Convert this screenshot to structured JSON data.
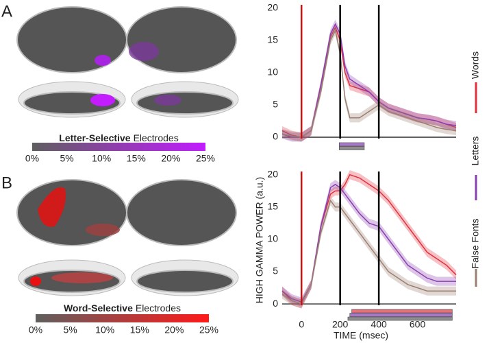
{
  "panels": [
    {
      "label": "A",
      "colorbar": {
        "title_bold": "Letter-Selective",
        "title_rest": "Electrodes",
        "colors": [
          "#5f5f5f",
          "#c21cff"
        ],
        "ticks": [
          {
            "value": 0,
            "label": "0%"
          },
          {
            "value": 5,
            "label": "5%"
          },
          {
            "value": 10,
            "label": "10%"
          },
          {
            "value": 15,
            "label": "15%"
          },
          {
            "value": 20,
            "label": "20%"
          },
          {
            "value": 25,
            "label": "25%"
          }
        ]
      }
    },
    {
      "label": "B",
      "colorbar": {
        "title_bold": "Word-Selective",
        "title_rest": "Electrodes",
        "colors": [
          "#5f5f5f",
          "#ff1a1a"
        ],
        "ticks": [
          {
            "value": 0,
            "label": "0%"
          },
          {
            "value": 5,
            "label": "5%"
          },
          {
            "value": 10,
            "label": "10%"
          },
          {
            "value": 15,
            "label": "15%"
          },
          {
            "value": 20,
            "label": "20%"
          },
          {
            "value": 25,
            "label": "25%"
          }
        ]
      }
    }
  ],
  "ylabel": "HIGH GAMMA POWER (a.u.)",
  "xlabel": "TIME (msec)",
  "chart_data": [
    {
      "type": "line",
      "x": [
        -100,
        -50,
        0,
        50,
        100,
        150,
        175,
        200,
        225,
        250,
        300,
        350,
        400,
        450,
        500,
        550,
        600,
        650,
        700,
        750,
        800
      ],
      "xlim": [
        -100,
        800
      ],
      "ylim": [
        -2.5,
        20.5
      ],
      "yticks": [
        0,
        5,
        10,
        15,
        20
      ],
      "error": 0.7,
      "series": [
        {
          "name": "Words",
          "color": "#e0303c",
          "values": [
            1,
            0.3,
            0,
            1,
            8,
            15.5,
            17,
            15,
            10,
            8,
            7.5,
            7,
            5.5,
            4.5,
            4,
            3.5,
            3,
            2.8,
            2.5,
            2,
            1.5
          ]
        },
        {
          "name": "Letters",
          "color": "#8a3fb0",
          "values": [
            0.5,
            0,
            0,
            1,
            8,
            16,
            17.5,
            16,
            11,
            9,
            8,
            7,
            5.5,
            4.5,
            4,
            3.5,
            3,
            2.8,
            2.5,
            2,
            1.8
          ]
        },
        {
          "name": "False Fonts",
          "color": "#9a7f72",
          "values": [
            0.5,
            0.2,
            0,
            1,
            7,
            15,
            16.5,
            13,
            6,
            3,
            3,
            4,
            5,
            4,
            3.5,
            3,
            2.5,
            2,
            1.5,
            1.2,
            1
          ]
        }
      ],
      "vlines": [
        {
          "x": 0,
          "color": "#cc1111"
        },
        {
          "x": 200,
          "color": "#000000"
        },
        {
          "x": 400,
          "color": "#000000"
        }
      ],
      "sig_bars": [
        {
          "start": 195,
          "end": 325,
          "color": "#a878c8"
        },
        {
          "start": 195,
          "end": 325,
          "color": "#8e8e8e"
        }
      ]
    },
    {
      "type": "line",
      "x": [
        -100,
        -50,
        0,
        50,
        100,
        150,
        175,
        200,
        225,
        250,
        300,
        350,
        400,
        450,
        500,
        550,
        600,
        650,
        700,
        750,
        800
      ],
      "xlim": [
        -100,
        800
      ],
      "ylim": [
        -1.8,
        20.5
      ],
      "yticks": [
        0,
        5,
        10,
        15,
        20
      ],
      "xticks": [
        0,
        200,
        400,
        600
      ],
      "error": 0.7,
      "series": [
        {
          "color": "#e0303c",
          "values": [
            2,
            0.5,
            0,
            3,
            12,
            17,
            17.5,
            17.5,
            18.5,
            20,
            19.5,
            18.5,
            17.5,
            16,
            14,
            12,
            10,
            8,
            7,
            6,
            4.5
          ]
        },
        {
          "color": "#8a3fb0",
          "values": [
            2,
            0.8,
            0.3,
            3,
            12,
            18,
            18.5,
            18,
            17,
            16,
            14,
            12.5,
            12,
            10,
            8,
            6,
            5,
            4,
            3.5,
            3.5,
            3.5
          ]
        },
        {
          "color": "#9a7f72",
          "values": [
            1.5,
            0.5,
            0,
            3,
            11,
            16,
            15,
            15,
            14,
            13,
            11,
            9,
            7,
            5,
            4,
            3,
            2.5,
            2,
            2,
            2,
            2
          ]
        }
      ],
      "vlines": [
        {
          "x": 0,
          "color": "#cc1111"
        },
        {
          "x": 200,
          "color": "#000000"
        },
        {
          "x": 400,
          "color": "#000000"
        }
      ],
      "sig_bars": [
        {
          "start": 260,
          "end": 780,
          "color": "#e57078"
        },
        {
          "start": 250,
          "end": 780,
          "color": "#a878c8"
        },
        {
          "start": 240,
          "end": 780,
          "color": "#8e8e8e"
        }
      ]
    }
  ]
}
